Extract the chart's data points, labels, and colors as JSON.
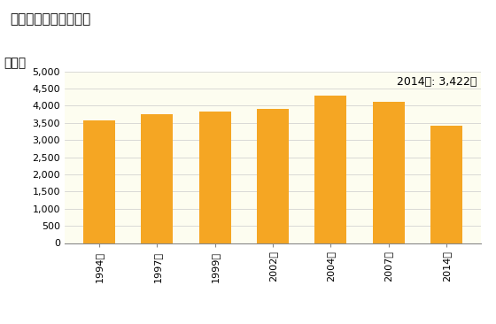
{
  "title": "商業の従業者数の推移",
  "ylabel": "［人］",
  "annotation": "2014年: 3,422人",
  "categories": [
    "1994年",
    "1997年",
    "1999年",
    "2002年",
    "2004年",
    "2007年",
    "2014年"
  ],
  "values": [
    3570,
    3740,
    3820,
    3910,
    4300,
    4100,
    3422
  ],
  "bar_color": "#F5A623",
  "ylim": [
    0,
    5000
  ],
  "yticks": [
    0,
    500,
    1000,
    1500,
    2000,
    2500,
    3000,
    3500,
    4000,
    4500,
    5000
  ],
  "fig_background": "#FFFFFF",
  "plot_background": "#FDFDF0",
  "title_fontsize": 11,
  "annotation_fontsize": 9,
  "ylabel_fontsize": 10,
  "tick_fontsize": 8
}
